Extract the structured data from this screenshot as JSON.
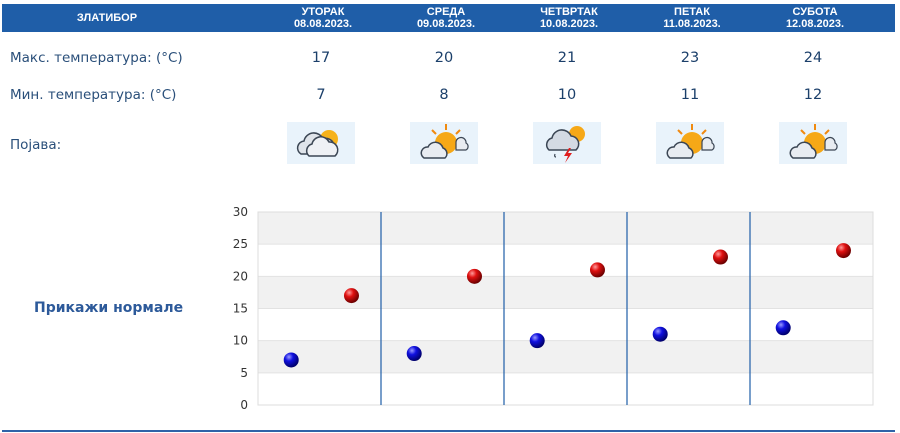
{
  "header": {
    "location": "ЗЛАТИБОР",
    "days": [
      {
        "name": "УТОРАК",
        "date": "08.08.2023."
      },
      {
        "name": "СРЕДА",
        "date": "09.08.2023."
      },
      {
        "name": "ЧЕТВРТАК",
        "date": "10.08.2023."
      },
      {
        "name": "ПЕТАК",
        "date": "11.08.2023."
      },
      {
        "name": "СУБОТА",
        "date": "12.08.2023."
      }
    ]
  },
  "rows": {
    "max_label": "Макс. температура: (°C)",
    "min_label": "Мин. температура: (°C)",
    "phenomenon_label": "Појава:"
  },
  "max_temps": [
    "17",
    "20",
    "21",
    "23",
    "24"
  ],
  "min_temps": [
    "7",
    "8",
    "10",
    "11",
    "12"
  ],
  "icons": [
    "partly-cloudy-icon",
    "partly-sunny-icon",
    "thunderstorm-icon",
    "partly-sunny-icon",
    "partly-sunny-icon"
  ],
  "show_normals_label": "Прикажи нормале",
  "colors": {
    "header_bg": "#1f5ea8",
    "max_point": "#cc0000",
    "min_point": "#0000cc",
    "divider": "#1f5ea8"
  },
  "chart_data": {
    "type": "scatter",
    "categories": [
      "08.08.2023.",
      "09.08.2023.",
      "10.08.2023.",
      "11.08.2023.",
      "12.08.2023."
    ],
    "series": [
      {
        "values": [
          7,
          8,
          10,
          11,
          12
        ]
      },
      {
        "values": [
          17,
          20,
          21,
          23,
          24
        ]
      }
    ],
    "ylim": [
      0,
      30
    ],
    "yticks": [
      "0",
      "5",
      "10",
      "15",
      "20",
      "25",
      "30"
    ],
    "grid": true
  }
}
